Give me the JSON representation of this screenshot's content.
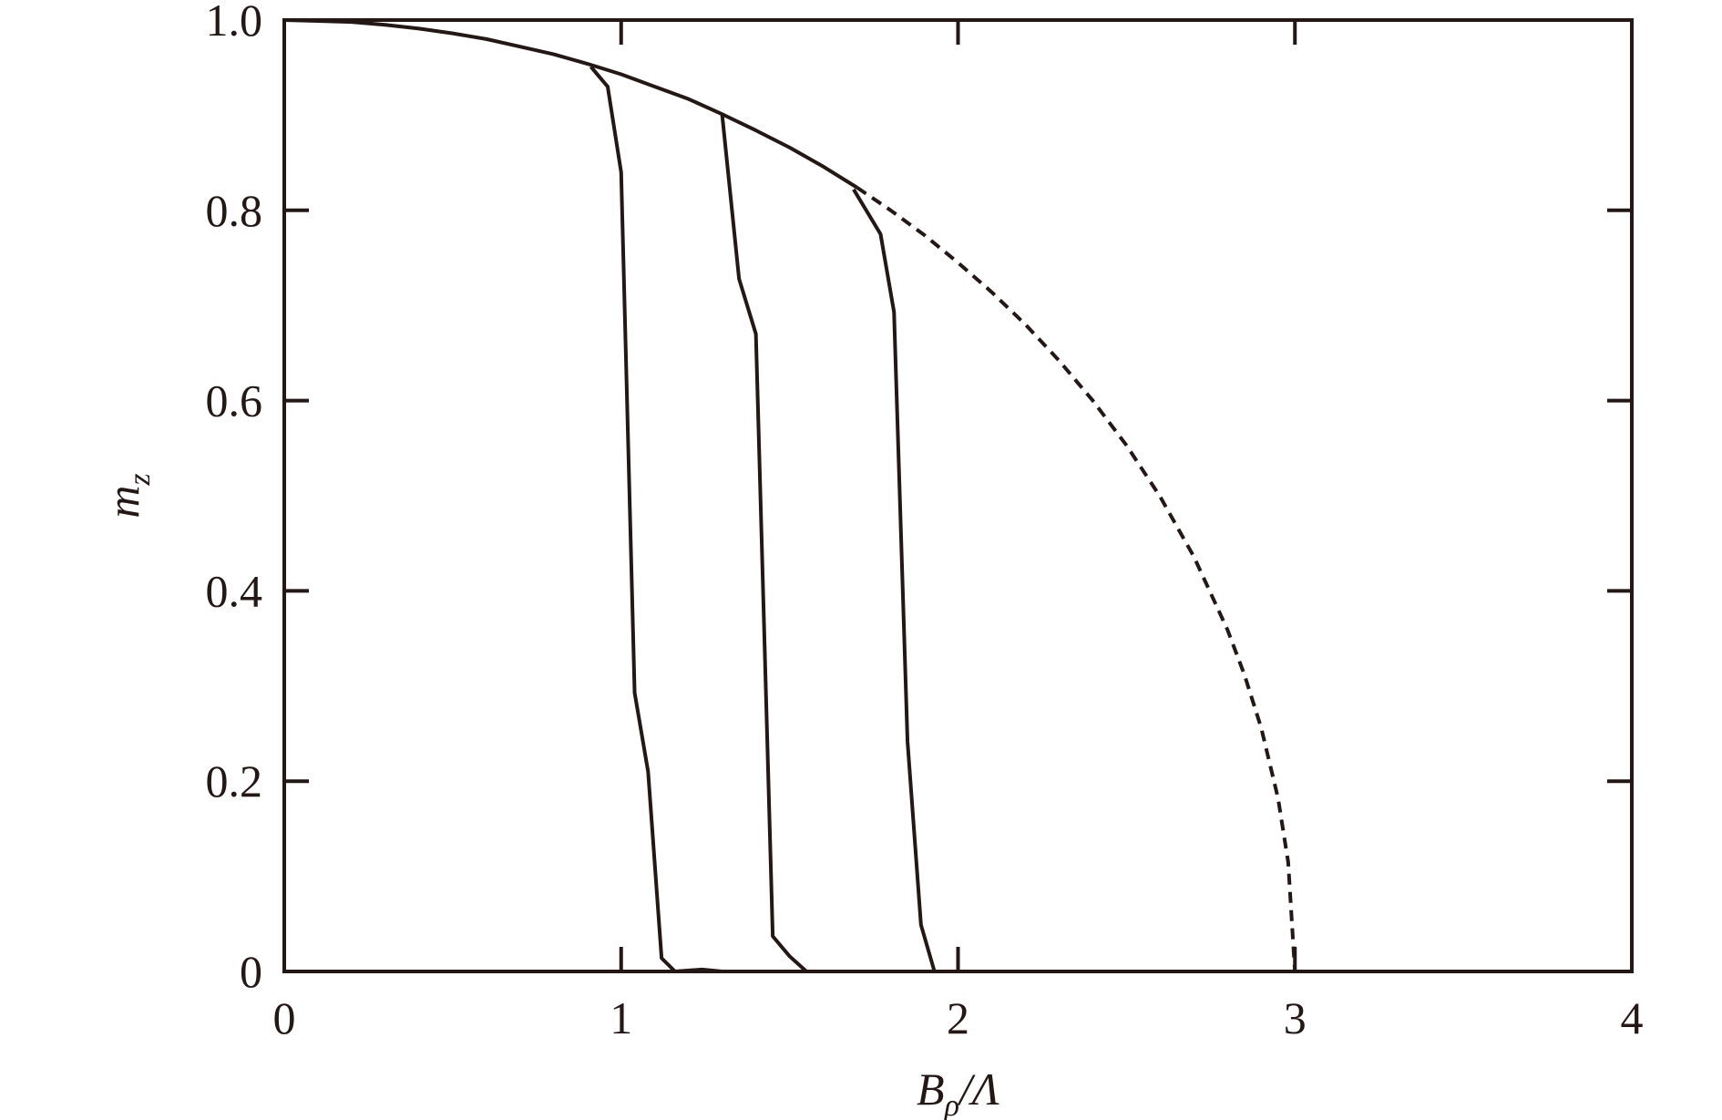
{
  "chart_data": {
    "type": "line",
    "x_label": [
      "B",
      "ρ",
      "/Λ"
    ],
    "y_label": [
      "m",
      "z"
    ],
    "xlim": [
      0,
      4
    ],
    "ylim": [
      0,
      1
    ],
    "xticks": [
      0,
      1,
      2,
      3,
      4
    ],
    "yticks": [
      0,
      0.2,
      0.4,
      0.6,
      0.8,
      {
        "value": 1,
        "label": "1.0"
      }
    ],
    "grid": false,
    "series": [
      {
        "color": "#231815",
        "dash": false,
        "x": [
          0,
          0.1,
          0.2,
          0.3,
          0.4,
          0.5,
          0.6,
          0.7,
          0.8,
          0.9,
          1.0,
          1.1,
          1.2,
          1.3,
          1.4,
          1.5,
          1.6,
          1.7
        ],
        "values": [
          1,
          0.999,
          0.998,
          0.995,
          0.991,
          0.986,
          0.98,
          0.972,
          0.964,
          0.954,
          0.943,
          0.93,
          0.917,
          0.901,
          0.884,
          0.866,
          0.846,
          0.824
        ]
      },
      {
        "color": "#231815",
        "dash": false,
        "x": [
          0.91,
          0.96,
          1.0,
          1.04,
          1.08,
          1.12,
          1.16,
          1.24,
          1.3
        ],
        "values": [
          0.951,
          0.93,
          0.84,
          0.293,
          0.21,
          0.014,
          0,
          0.002,
          0
        ]
      },
      {
        "color": "#231815",
        "dash": false,
        "x": [
          1.3,
          1.35,
          1.4,
          1.45,
          1.5,
          1.55
        ],
        "values": [
          0.9,
          0.728,
          0.67,
          0.037,
          0.016,
          0
        ]
      },
      {
        "color": "#231815",
        "dash": false,
        "x": [
          1.69,
          1.77,
          1.81,
          1.85,
          1.89,
          1.93
        ],
        "values": [
          0.822,
          0.775,
          0.693,
          0.242,
          0.049,
          0
        ]
      },
      {
        "color": "#231815",
        "dash": true,
        "x": [
          1.7,
          1.8,
          1.9,
          2.0,
          2.1,
          2.2,
          2.3,
          2.4,
          2.5,
          2.6,
          2.7,
          2.8,
          2.85,
          2.9,
          2.95,
          2.98,
          3.0
        ],
        "values": [
          0.824,
          0.8,
          0.774,
          0.745,
          0.714,
          0.68,
          0.642,
          0.6,
          0.553,
          0.499,
          0.436,
          0.359,
          0.312,
          0.256,
          0.182,
          0.115,
          0
        ]
      }
    ]
  }
}
